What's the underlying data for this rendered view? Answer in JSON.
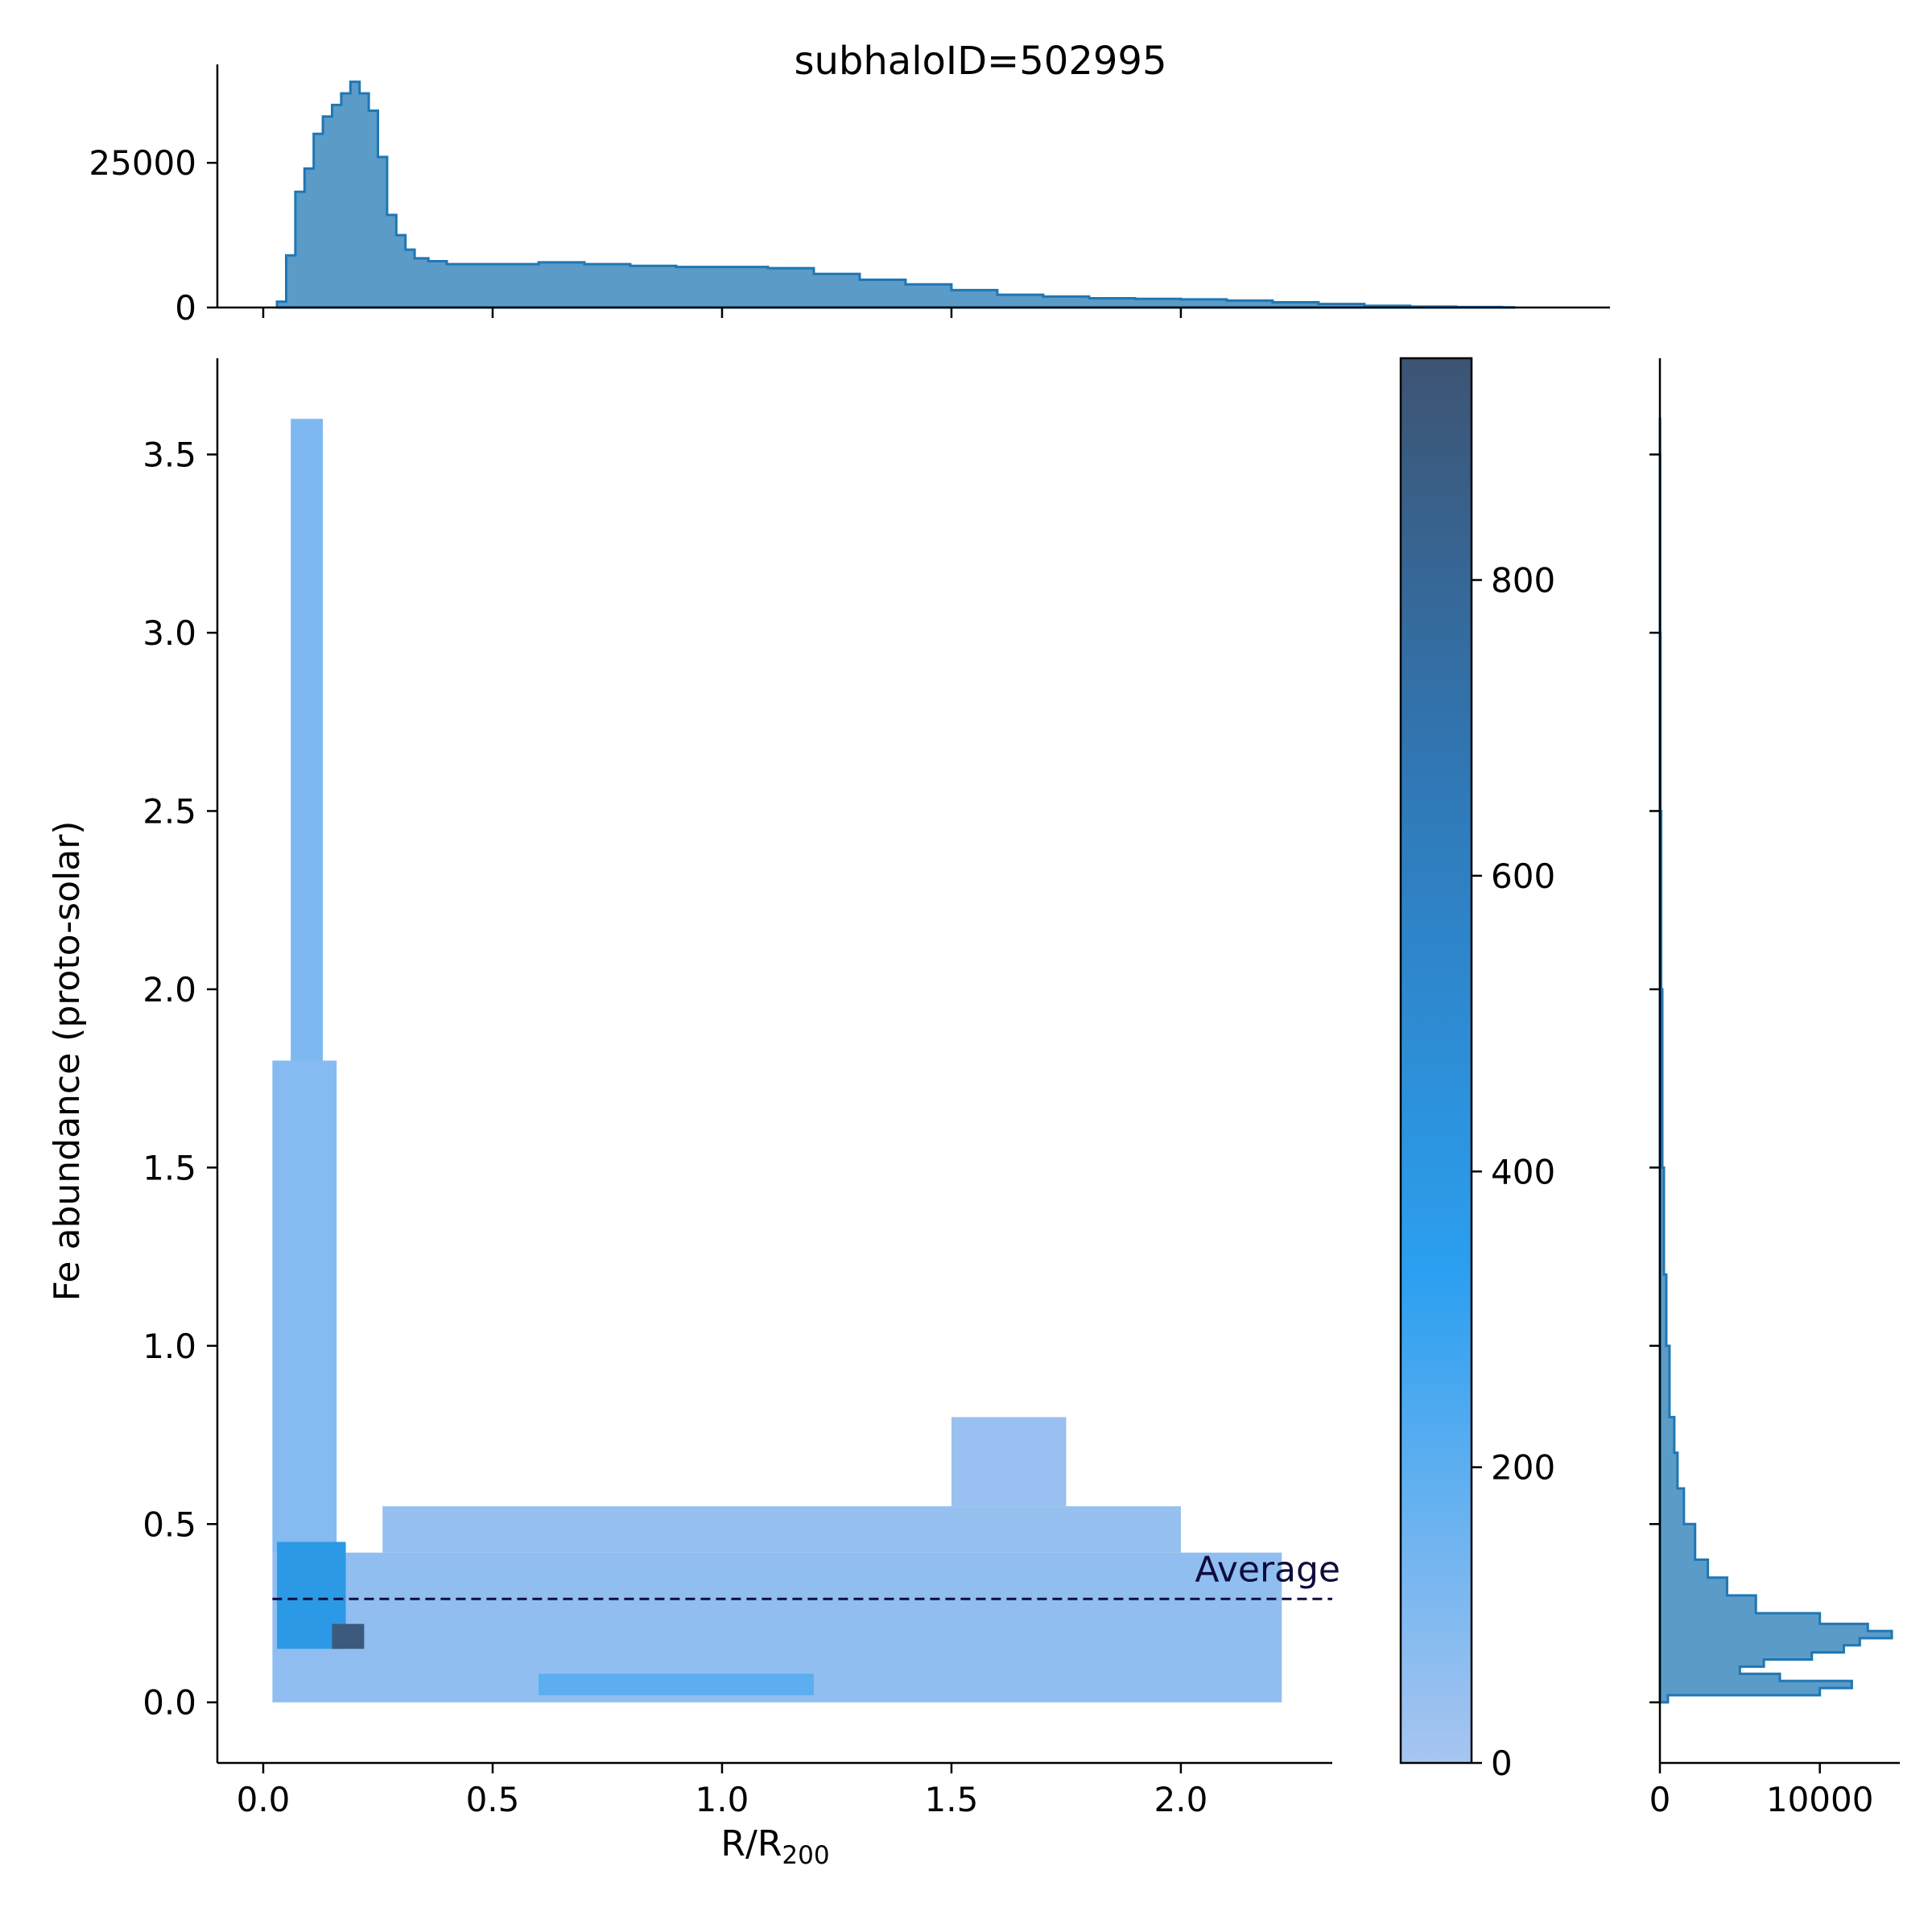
{
  "chart_data": {
    "type": "heatmap",
    "title": "subhaloID=502995",
    "xlabel": "R/R",
    "xlabel_subscript": "200",
    "ylabel": "Fe abundance (proto-solar)",
    "xlim": [
      -0.1,
      2.33
    ],
    "ylim": [
      -0.17,
      3.77
    ],
    "x_ticks": [
      "0.0",
      "0.5",
      "1.0",
      "1.5",
      "2.0"
    ],
    "x_tick_values": [
      0.0,
      0.5,
      1.0,
      1.5,
      2.0
    ],
    "y_ticks": [
      "0.0",
      "0.5",
      "1.0",
      "1.5",
      "2.0",
      "2.5",
      "3.0",
      "3.5"
    ],
    "y_tick_values": [
      0.0,
      0.5,
      1.0,
      1.5,
      2.0,
      2.5,
      3.0,
      3.5
    ],
    "average_line": {
      "label": "Average",
      "y": 0.29,
      "color": "#0d0d3d"
    },
    "density_regions": [
      {
        "x": [
          0.02,
          2.22
        ],
        "y": [
          0.0,
          0.42
        ],
        "level": 60
      },
      {
        "x": [
          0.26,
          2.0
        ],
        "y": [
          0.42,
          0.55
        ],
        "level": 45
      },
      {
        "x": [
          0.02,
          0.16
        ],
        "y": [
          0.42,
          1.8
        ],
        "level": 90
      },
      {
        "x": [
          0.06,
          0.13
        ],
        "y": [
          1.8,
          3.6
        ],
        "level": 110
      },
      {
        "x": [
          0.6,
          1.2
        ],
        "y": [
          0.02,
          0.08
        ],
        "level": 200
      },
      {
        "x": [
          1.5,
          1.75
        ],
        "y": [
          0.55,
          0.8
        ],
        "level": 40
      },
      {
        "x": [
          0.03,
          0.18
        ],
        "y": [
          0.15,
          0.45
        ],
        "level": 380
      },
      {
        "x": [
          0.15,
          0.22
        ],
        "y": [
          0.15,
          0.22
        ],
        "level": 900
      }
    ],
    "top_histogram": {
      "ylim": [
        0,
        42000
      ],
      "y_ticks": [
        "0",
        "25000"
      ],
      "y_tick_values": [
        0,
        25000
      ],
      "bins": [
        [
          0.03,
          1000
        ],
        [
          0.05,
          9000
        ],
        [
          0.07,
          20000
        ],
        [
          0.09,
          24000
        ],
        [
          0.11,
          30000
        ],
        [
          0.13,
          33000
        ],
        [
          0.15,
          35000
        ],
        [
          0.17,
          37000
        ],
        [
          0.19,
          39000
        ],
        [
          0.21,
          37000
        ],
        [
          0.23,
          34000
        ],
        [
          0.25,
          26000
        ],
        [
          0.27,
          16000
        ],
        [
          0.29,
          12500
        ],
        [
          0.31,
          10000
        ],
        [
          0.33,
          8500
        ],
        [
          0.36,
          8000
        ],
        [
          0.4,
          7500
        ],
        [
          0.5,
          7500
        ],
        [
          0.6,
          7800
        ],
        [
          0.7,
          7500
        ],
        [
          0.8,
          7200
        ],
        [
          0.9,
          7000
        ],
        [
          1.0,
          7000
        ],
        [
          1.1,
          6800
        ],
        [
          1.2,
          5800
        ],
        [
          1.3,
          4800
        ],
        [
          1.4,
          4000
        ],
        [
          1.5,
          3000
        ],
        [
          1.6,
          2200
        ],
        [
          1.7,
          1900
        ],
        [
          1.8,
          1600
        ],
        [
          1.9,
          1500
        ],
        [
          2.0,
          1400
        ],
        [
          2.1,
          1200
        ],
        [
          2.2,
          900
        ],
        [
          2.3,
          600
        ],
        [
          2.4,
          300
        ],
        [
          2.5,
          150
        ],
        [
          2.6,
          80
        ],
        [
          2.7,
          40
        ]
      ]
    },
    "right_histogram": {
      "xlim": [
        0,
        15000
      ],
      "x_ticks": [
        "0",
        "10000"
      ],
      "x_tick_values": [
        0,
        10000
      ],
      "bins": [
        [
          0.0,
          500
        ],
        [
          0.02,
          10000
        ],
        [
          0.04,
          12000
        ],
        [
          0.06,
          7500
        ],
        [
          0.08,
          5000
        ],
        [
          0.1,
          6500
        ],
        [
          0.12,
          9500
        ],
        [
          0.14,
          11500
        ],
        [
          0.16,
          12500
        ],
        [
          0.18,
          14500
        ],
        [
          0.2,
          13000
        ],
        [
          0.22,
          10000
        ],
        [
          0.25,
          6000
        ],
        [
          0.3,
          4200
        ],
        [
          0.35,
          3000
        ],
        [
          0.4,
          2200
        ],
        [
          0.5,
          1500
        ],
        [
          0.6,
          1100
        ],
        [
          0.7,
          900
        ],
        [
          0.8,
          600
        ],
        [
          1.0,
          400
        ],
        [
          1.2,
          250
        ],
        [
          1.5,
          150
        ],
        [
          2.0,
          80
        ],
        [
          2.5,
          40
        ],
        [
          3.0,
          20
        ],
        [
          3.5,
          10
        ],
        [
          3.6,
          0
        ]
      ]
    },
    "colorbar": {
      "range": [
        0,
        950
      ],
      "ticks": [
        "0",
        "200",
        "400",
        "600",
        "800"
      ],
      "tick_values": [
        0,
        200,
        400,
        600,
        800
      ],
      "colors": [
        "#a7c5f0",
        "#2b9ff0",
        "#3d5473"
      ]
    },
    "series_color": "#1f77b4"
  }
}
